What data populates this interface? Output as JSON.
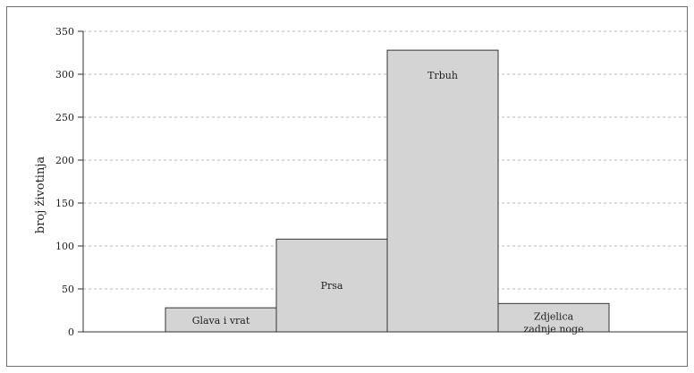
{
  "chart_data": {
    "type": "bar",
    "ylabel": "broj životinja",
    "xlabel": "",
    "ylim": [
      0,
      350
    ],
    "yticks": [
      0,
      50,
      100,
      150,
      200,
      250,
      300,
      350
    ],
    "grid": true,
    "categories": [
      {
        "name": "Glava i vrat",
        "lines": [
          "Glava i vrat"
        ]
      },
      {
        "name": "Prsa",
        "lines": [
          "Prsa"
        ]
      },
      {
        "name": "Trbuh",
        "lines": [
          "Trbuh"
        ]
      },
      {
        "name": "Zdjelica zadnje noge",
        "lines": [
          "Zdjelica",
          "zadnje noge"
        ]
      }
    ],
    "values": [
      28,
      108,
      328,
      33
    ],
    "colors": {
      "bar_fill": "#d4d4d4",
      "bar_stroke": "#333333",
      "grid": "#b8b8b8",
      "axis": "#333333"
    }
  }
}
